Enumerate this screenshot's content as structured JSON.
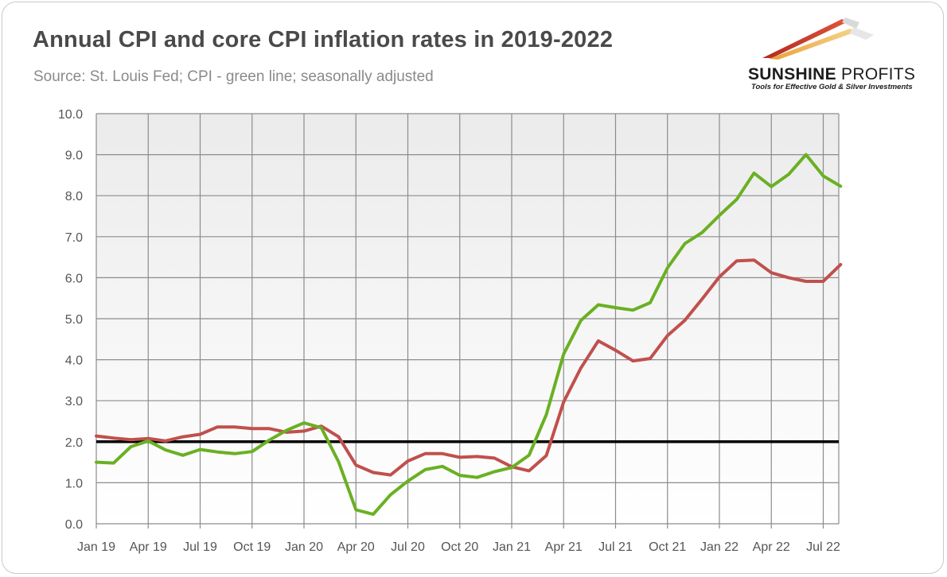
{
  "title": "Annual CPI and core CPI inflation rates in 2019-2022",
  "subtitle": "Source: St. Louis Fed; CPI - green line; seasonally adjusted",
  "logo": {
    "name_bold": "SUNSHINE",
    "name_rest": " PROFITS",
    "tagline": "Tools for Effective Gold & Silver Investments"
  },
  "colors": {
    "cpi": "#6ab023",
    "core": "#c0504d",
    "reference": "#000000",
    "grid": "#8c8c8c"
  },
  "chart_data": {
    "type": "line",
    "title": "Annual CPI and core CPI inflation rates in 2019-2022",
    "subtitle": "Source: St. Louis Fed; CPI - green line; seasonally adjusted",
    "xlabel": "",
    "ylabel": "",
    "ylim": [
      0,
      10
    ],
    "yticks": [
      "0.0",
      "1.0",
      "2.0",
      "3.0",
      "4.0",
      "5.0",
      "6.0",
      "7.0",
      "8.0",
      "9.0",
      "10.0"
    ],
    "xtick_labels": [
      "Jan 19",
      "Apr 19",
      "Jul 19",
      "Oct 19",
      "Jan 20",
      "Apr 20",
      "Jul 20",
      "Oct 20",
      "Jan 21",
      "Apr 21",
      "Jul 21",
      "Oct 21",
      "Jan 22",
      "Apr 22",
      "Jul 22"
    ],
    "x": [
      "2019-01",
      "2019-02",
      "2019-03",
      "2019-04",
      "2019-05",
      "2019-06",
      "2019-07",
      "2019-08",
      "2019-09",
      "2019-10",
      "2019-11",
      "2019-12",
      "2020-01",
      "2020-02",
      "2020-03",
      "2020-04",
      "2020-05",
      "2020-06",
      "2020-07",
      "2020-08",
      "2020-09",
      "2020-10",
      "2020-11",
      "2020-12",
      "2021-01",
      "2021-02",
      "2021-03",
      "2021-04",
      "2021-05",
      "2021-06",
      "2021-07",
      "2021-08",
      "2021-09",
      "2021-10",
      "2021-11",
      "2021-12",
      "2022-01",
      "2022-02",
      "2022-03",
      "2022-04",
      "2022-05",
      "2022-06",
      "2022-07",
      "2022-08"
    ],
    "grid": true,
    "legend": "none",
    "series": [
      {
        "color": "#6ab023",
        "values": [
          1.5,
          1.48,
          1.88,
          2.02,
          1.8,
          1.67,
          1.81,
          1.75,
          1.71,
          1.76,
          2.04,
          2.28,
          2.46,
          2.34,
          1.51,
          0.34,
          0.23,
          0.71,
          1.04,
          1.32,
          1.4,
          1.18,
          1.13,
          1.27,
          1.37,
          1.67,
          2.66,
          4.14,
          4.96,
          5.34,
          5.27,
          5.21,
          5.39,
          6.24,
          6.83,
          7.1,
          7.52,
          7.91,
          8.55,
          8.22,
          8.52,
          9.0,
          8.48,
          8.23
        ]
      },
      {
        "color": "#c0504d",
        "values": [
          2.14,
          2.09,
          2.05,
          2.08,
          2.02,
          2.12,
          2.18,
          2.36,
          2.36,
          2.32,
          2.32,
          2.23,
          2.26,
          2.38,
          2.12,
          1.43,
          1.25,
          1.19,
          1.53,
          1.71,
          1.71,
          1.62,
          1.64,
          1.6,
          1.39,
          1.29,
          1.66,
          2.97,
          3.8,
          4.46,
          4.23,
          3.97,
          4.03,
          4.59,
          4.96,
          5.48,
          6.02,
          6.41,
          6.43,
          6.12,
          6.0,
          5.91,
          5.91,
          6.32
        ]
      }
    ],
    "reference_line": 2.0
  }
}
